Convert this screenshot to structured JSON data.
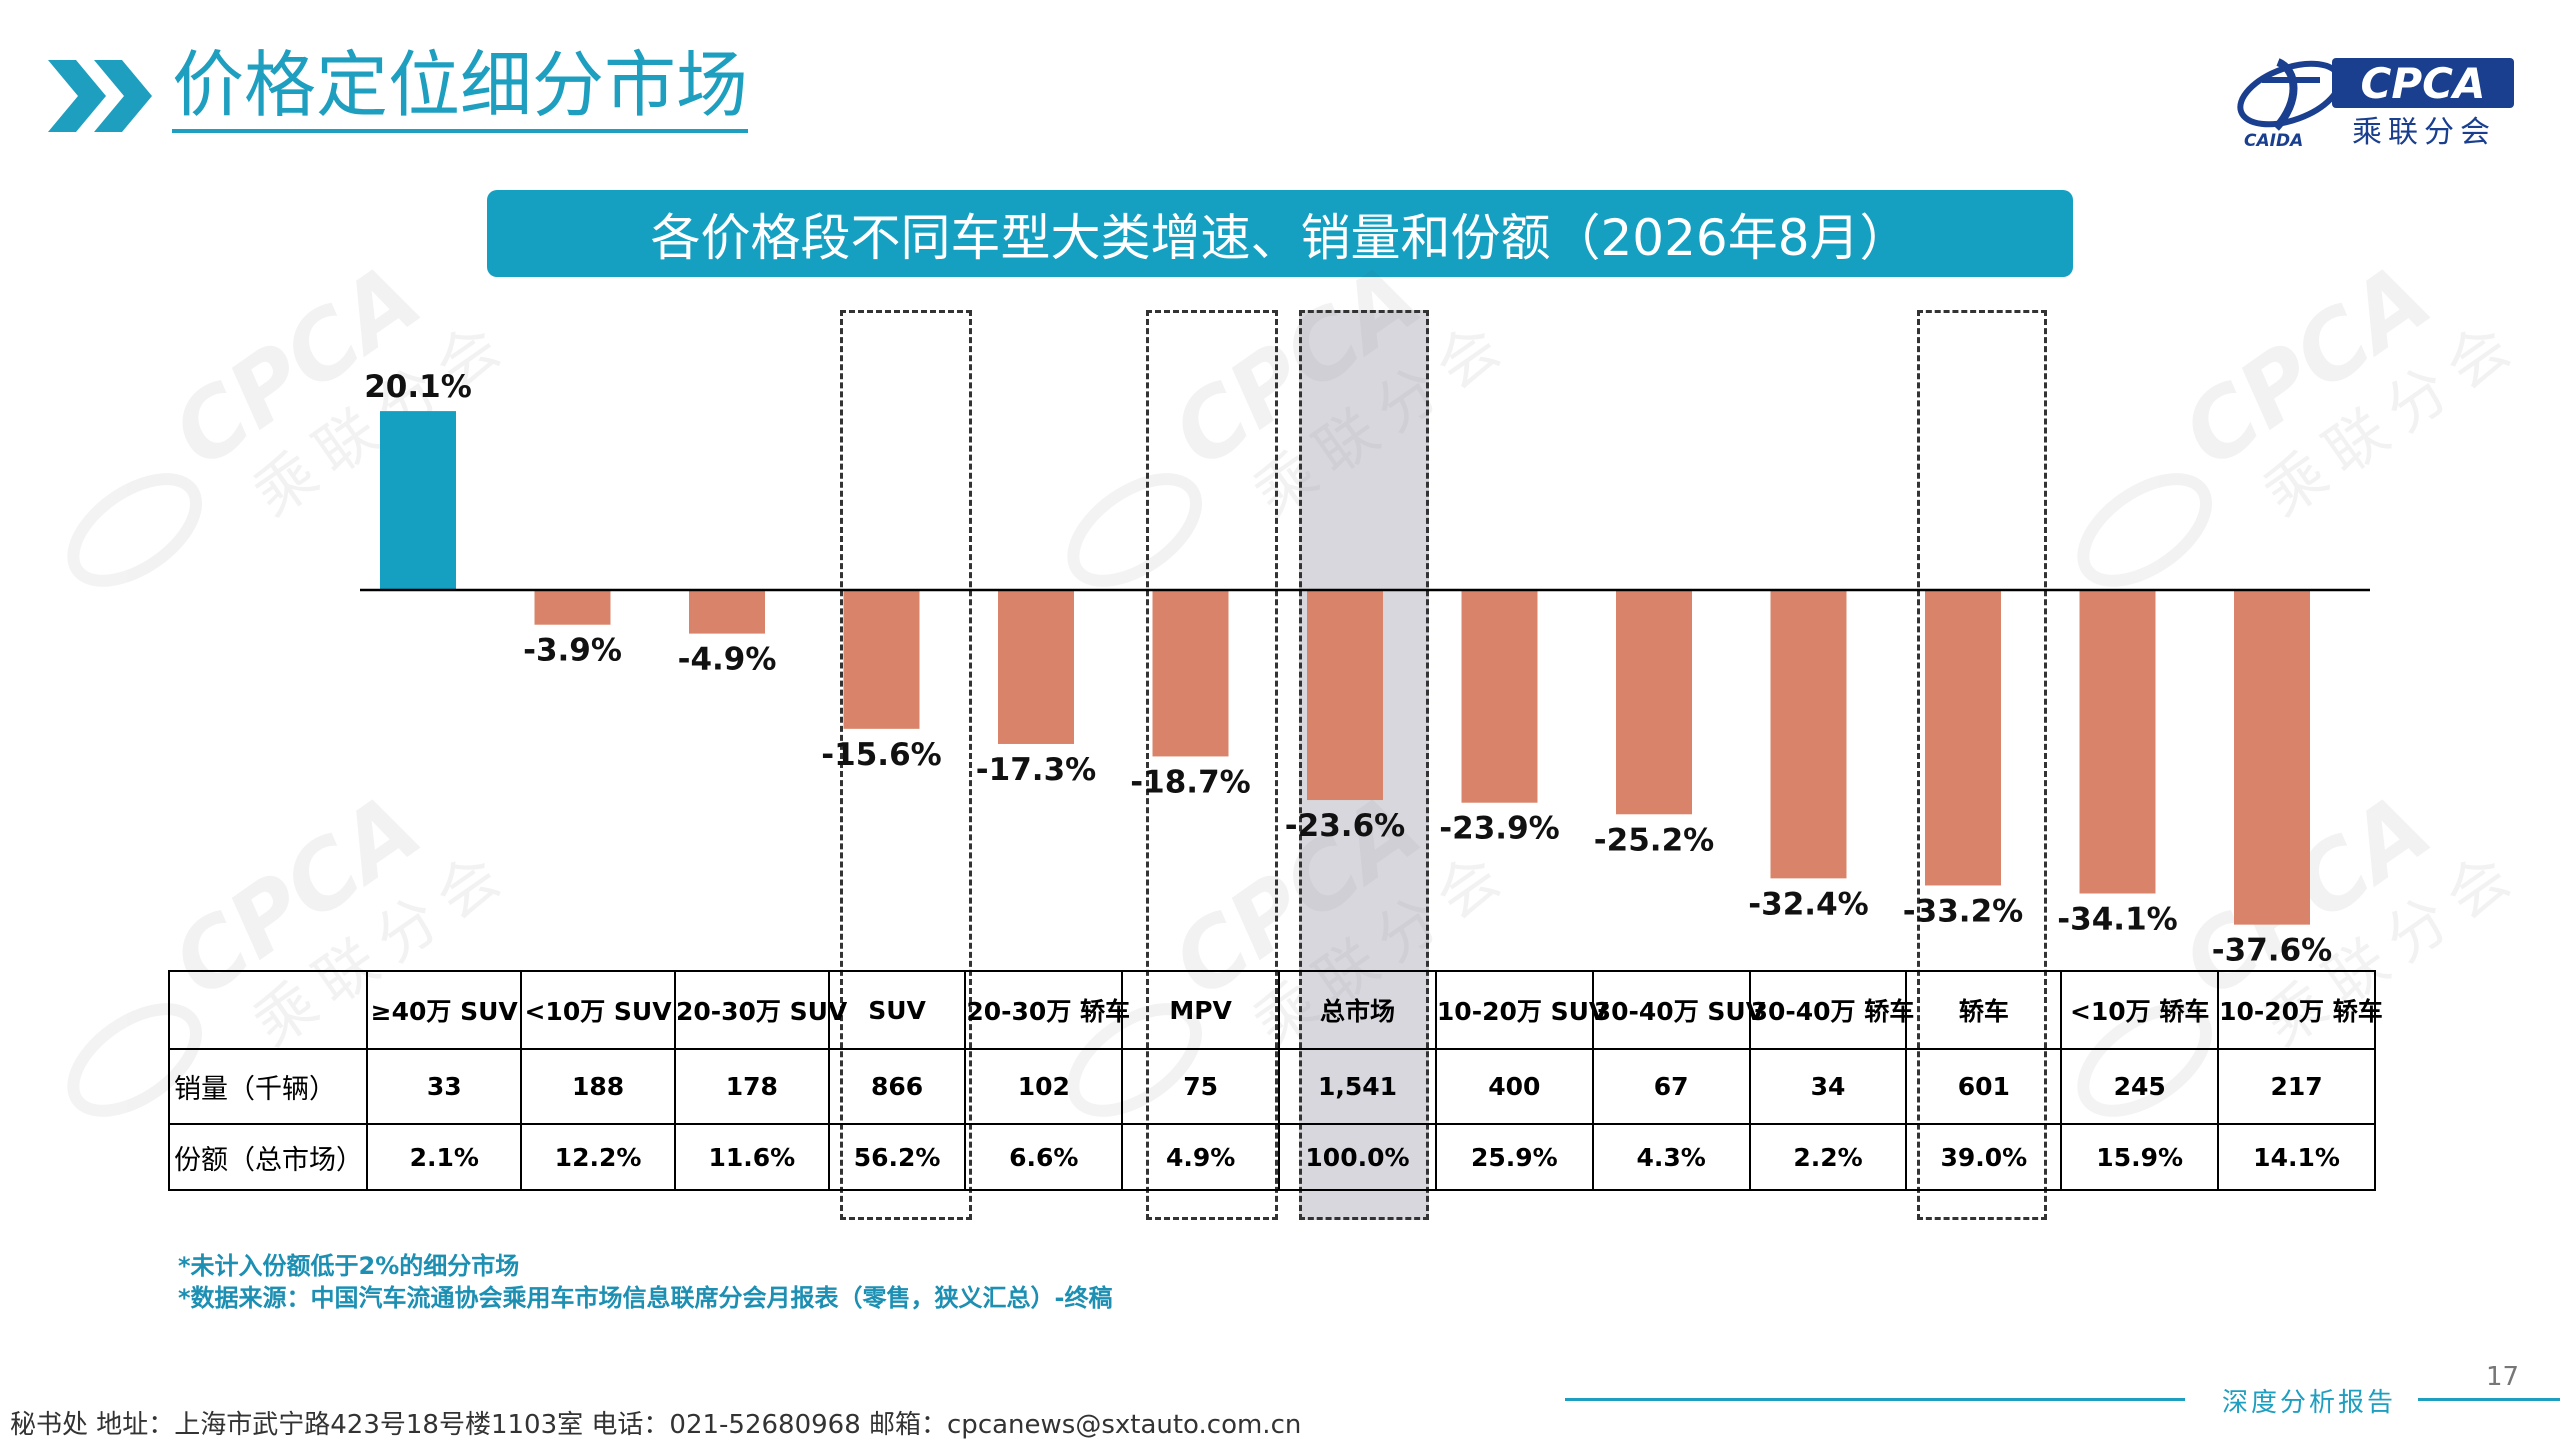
{
  "page": {
    "title": "价格定位细分市场",
    "banner": "各价格段不同车型大类增速、销量和份额（2026年8月）",
    "logo": {
      "brand": "CPCA",
      "subtitle": "乘联分会",
      "emblem_text": "CAIDA"
    },
    "watermark_text": [
      "CPCA",
      "乘联分会"
    ],
    "notes": [
      "*未计入份额低于2%的细分市场",
      "*数据来源：中国汽车流通协会乘用车市场信息联席分会月报表（零售，狭义汇总）-终稿"
    ],
    "page_number": "17",
    "report_label": "深度分析报告",
    "footer": "秘书处   地址：上海市武宁路423号18号楼1103室  电话：021-52680968   邮箱：cpcanews@sxtauto.com.cn",
    "colors": {
      "accent": "#1e9fc0",
      "positive": "#159fc1",
      "negative": "#d9846a",
      "highlight": "#a8a8b4"
    }
  },
  "chart_data": {
    "type": "bar",
    "categories": [
      "≥40万 SUV",
      "<10万 SUV",
      "20-30万 SUV",
      "SUV",
      "20-30万 轿车",
      "MPV",
      "总市场",
      "10-20万 SUV",
      "30-40万 SUV",
      "30-40万 轿车",
      "轿车",
      "<10万 轿车",
      "10-20万 轿车"
    ],
    "values": [
      20.1,
      -3.9,
      -4.9,
      -15.6,
      -17.3,
      -18.7,
      -23.6,
      -23.9,
      -25.2,
      -32.4,
      -33.2,
      -34.1,
      -37.6
    ],
    "value_labels": [
      "20.1%",
      "-3.9%",
      "-4.9%",
      "-15.6%",
      "-17.3%",
      "-18.7%",
      "-23.6%",
      "-23.9%",
      "-25.2%",
      "-32.4%",
      "-33.2%",
      "-34.1%",
      "-37.6%"
    ],
    "unit": "%",
    "ylim": [
      -40,
      22
    ],
    "highlighted_categories": [
      "SUV",
      "MPV",
      "总市场",
      "轿车"
    ],
    "shaded_category": "总市场",
    "grid": false,
    "table": {
      "rows": [
        {
          "label": "销量（千辆）",
          "values": [
            "33",
            "188",
            "178",
            "866",
            "102",
            "75",
            "1,541",
            "400",
            "67",
            "34",
            "601",
            "245",
            "217"
          ]
        },
        {
          "label": "份额（总市场）",
          "values": [
            "2.1%",
            "12.2%",
            "11.6%",
            "56.2%",
            "6.6%",
            "4.9%",
            "100.0%",
            "25.9%",
            "4.3%",
            "2.2%",
            "39.0%",
            "15.9%",
            "14.1%"
          ]
        }
      ]
    }
  }
}
